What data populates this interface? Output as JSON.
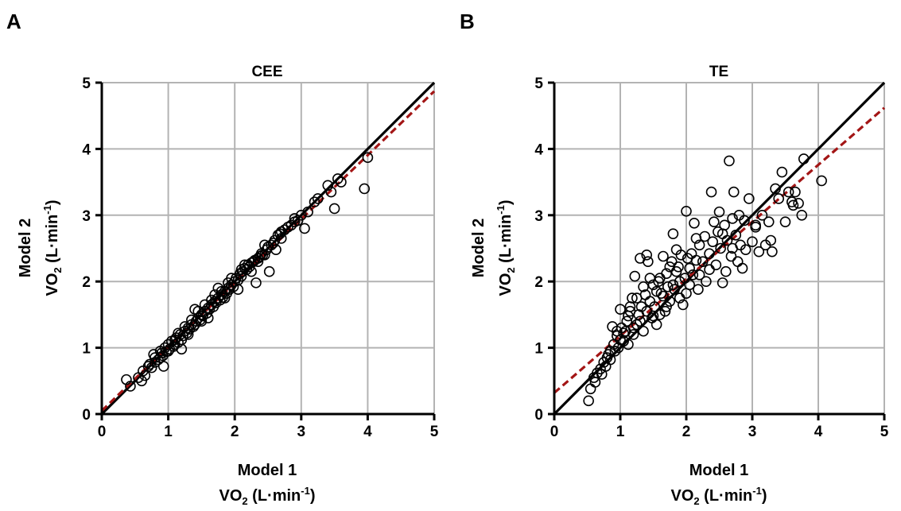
{
  "colors": {
    "grid": "#b3b3b3",
    "axis": "#000000",
    "identity": "#000000",
    "regression": "#a31515",
    "points": "#000000"
  },
  "chart_data": [
    {
      "panel": "A",
      "type": "scatter",
      "title": "CEE",
      "xlabel": {
        "line1": "Model 1",
        "dot": "V",
        "base": "O",
        "sub": "2",
        "unit_open": " (L·min",
        "sup": "-1",
        "unit_close": ")"
      },
      "ylabel": {
        "line1": "Model 2",
        "dot": "V",
        "base": "O",
        "sub": "2",
        "unit_open": " (L·min",
        "sup": "-1",
        "unit_close": ")"
      },
      "xlim": [
        0,
        5
      ],
      "ylim": [
        0,
        5
      ],
      "xticks": [
        "0",
        "1",
        "2",
        "3",
        "4",
        "5"
      ],
      "yticks": [
        "0",
        "1",
        "2",
        "3",
        "4",
        "5"
      ],
      "grid": true,
      "lines": [
        {
          "role": "identity",
          "style": "solid",
          "x": [
            0,
            5
          ],
          "y": [
            0,
            5
          ]
        },
        {
          "role": "regression",
          "style": "dashed",
          "x": [
            0,
            5
          ],
          "y": [
            0.05,
            4.87
          ]
        }
      ],
      "points": [
        [
          0.37,
          0.52
        ],
        [
          0.43,
          0.42
        ],
        [
          0.55,
          0.55
        ],
        [
          0.6,
          0.5
        ],
        [
          0.62,
          0.65
        ],
        [
          0.65,
          0.58
        ],
        [
          0.7,
          0.72
        ],
        [
          0.75,
          0.7
        ],
        [
          0.78,
          0.9
        ],
        [
          0.8,
          0.78
        ],
        [
          0.85,
          0.82
        ],
        [
          0.88,
          0.85
        ],
        [
          0.9,
          0.92
        ],
        [
          0.92,
          0.88
        ],
        [
          0.93,
          0.72
        ],
        [
          0.95,
          1.0
        ],
        [
          0.97,
          0.94
        ],
        [
          1.0,
          1.05
        ],
        [
          1.02,
          0.98
        ],
        [
          1.05,
          1.1
        ],
        [
          1.08,
          1.02
        ],
        [
          1.1,
          1.05
        ],
        [
          1.12,
          1.15
        ],
        [
          1.15,
          1.08
        ],
        [
          1.18,
          1.2
        ],
        [
          1.2,
          0.98
        ],
        [
          1.22,
          1.18
        ],
        [
          1.25,
          1.25
        ],
        [
          1.28,
          1.22
        ],
        [
          1.3,
          1.3
        ],
        [
          1.32,
          1.28
        ],
        [
          1.35,
          1.35
        ],
        [
          1.38,
          1.32
        ],
        [
          1.4,
          1.58
        ],
        [
          1.42,
          1.4
        ],
        [
          1.45,
          1.45
        ],
        [
          1.48,
          1.42
        ],
        [
          1.5,
          1.5
        ],
        [
          1.52,
          1.48
        ],
        [
          1.55,
          1.55
        ],
        [
          1.58,
          1.52
        ],
        [
          1.6,
          1.6
        ],
        [
          1.62,
          1.58
        ],
        [
          1.65,
          1.65
        ],
        [
          1.68,
          1.62
        ],
        [
          1.7,
          1.7
        ],
        [
          1.72,
          1.68
        ],
        [
          1.75,
          1.75
        ],
        [
          1.78,
          1.72
        ],
        [
          1.8,
          1.8
        ],
        [
          1.82,
          1.76
        ],
        [
          1.85,
          1.85
        ],
        [
          1.88,
          1.82
        ],
        [
          1.9,
          1.9
        ],
        [
          1.92,
          1.88
        ],
        [
          1.95,
          1.95
        ],
        [
          1.98,
          1.92
        ],
        [
          2.0,
          2.0
        ],
        [
          2.02,
          2.05
        ],
        [
          2.05,
          2.02
        ],
        [
          2.08,
          2.12
        ],
        [
          2.1,
          2.08
        ],
        [
          2.12,
          2.15
        ],
        [
          2.15,
          2.2
        ],
        [
          2.18,
          2.18
        ],
        [
          2.2,
          2.25
        ],
        [
          2.22,
          2.22
        ],
        [
          2.25,
          2.28
        ],
        [
          2.28,
          2.3
        ],
        [
          2.3,
          2.32
        ],
        [
          2.32,
          1.98
        ],
        [
          2.35,
          2.35
        ],
        [
          2.38,
          2.38
        ],
        [
          2.4,
          2.42
        ],
        [
          2.42,
          2.4
        ],
        [
          2.45,
          2.55
        ],
        [
          2.48,
          2.48
        ],
        [
          2.5,
          2.52
        ],
        [
          2.52,
          2.15
        ],
        [
          2.55,
          2.55
        ],
        [
          2.58,
          2.58
        ],
        [
          2.6,
          2.62
        ],
        [
          2.62,
          2.48
        ],
        [
          2.65,
          2.7
        ],
        [
          2.68,
          2.72
        ],
        [
          2.7,
          2.75
        ],
        [
          2.75,
          2.78
        ],
        [
          2.8,
          2.82
        ],
        [
          2.85,
          2.85
        ],
        [
          2.9,
          2.9
        ],
        [
          2.95,
          2.92
        ],
        [
          3.0,
          3.0
        ],
        [
          3.05,
          2.8
        ],
        [
          3.1,
          3.05
        ],
        [
          3.2,
          3.2
        ],
        [
          3.25,
          3.25
        ],
        [
          3.4,
          3.45
        ],
        [
          3.45,
          3.35
        ],
        [
          3.5,
          3.1
        ],
        [
          3.55,
          3.55
        ],
        [
          3.6,
          3.5
        ],
        [
          3.95,
          3.4
        ],
        [
          4.0,
          3.87
        ],
        [
          1.6,
          1.45
        ],
        [
          1.75,
          1.9
        ],
        [
          1.45,
          1.55
        ],
        [
          1.95,
          2.05
        ],
        [
          2.05,
          1.88
        ],
        [
          1.3,
          1.2
        ],
        [
          1.15,
          1.22
        ],
        [
          1.35,
          1.42
        ],
        [
          1.85,
          1.75
        ],
        [
          2.25,
          2.15
        ],
        [
          1.7,
          1.8
        ],
        [
          1.55,
          1.65
        ],
        [
          2.15,
          2.25
        ],
        [
          1.25,
          1.32
        ],
        [
          1.5,
          1.4
        ],
        [
          1.65,
          1.72
        ],
        [
          1.0,
          0.95
        ],
        [
          0.8,
          0.85
        ],
        [
          2.35,
          2.3
        ],
        [
          2.45,
          2.4
        ],
        [
          2.7,
          2.65
        ],
        [
          2.9,
          2.95
        ],
        [
          2.1,
          2.18
        ],
        [
          1.4,
          1.35
        ],
        [
          1.2,
          1.12
        ],
        [
          1.9,
          1.98
        ],
        [
          1.8,
          1.85
        ],
        [
          1.1,
          1.12
        ],
        [
          0.88,
          0.95
        ],
        [
          0.72,
          0.75
        ]
      ]
    },
    {
      "panel": "B",
      "type": "scatter",
      "title": "TE",
      "xlabel": {
        "line1": "Model 1",
        "dot": "V",
        "base": "O",
        "sub": "2",
        "unit_open": " (L·min",
        "sup": "-1",
        "unit_close": ")"
      },
      "ylabel": {
        "line1": "Model 2",
        "dot": "V",
        "base": "O",
        "sub": "2",
        "unit_open": " (L·min",
        "sup": "-1",
        "unit_close": ")"
      },
      "xlim": [
        0,
        5
      ],
      "ylim": [
        0,
        5
      ],
      "xticks": [
        "0",
        "1",
        "2",
        "3",
        "4",
        "5"
      ],
      "yticks": [
        "0",
        "1",
        "2",
        "3",
        "4",
        "5"
      ],
      "grid": true,
      "lines": [
        {
          "role": "identity",
          "style": "solid",
          "x": [
            0,
            5
          ],
          "y": [
            0,
            5
          ]
        },
        {
          "role": "regression",
          "style": "dashed",
          "x": [
            0,
            5
          ],
          "y": [
            0.32,
            4.62
          ]
        }
      ],
      "points": [
        [
          0.52,
          0.2
        ],
        [
          0.55,
          0.38
        ],
        [
          0.6,
          0.55
        ],
        [
          0.62,
          0.48
        ],
        [
          0.65,
          0.62
        ],
        [
          0.7,
          0.68
        ],
        [
          0.72,
          0.6
        ],
        [
          0.75,
          0.78
        ],
        [
          0.78,
          0.72
        ],
        [
          0.8,
          0.85
        ],
        [
          0.82,
          0.9
        ],
        [
          0.85,
          0.82
        ],
        [
          0.88,
          1.32
        ],
        [
          0.9,
          1.05
        ],
        [
          0.92,
          0.95
        ],
        [
          0.95,
          1.18
        ],
        [
          0.97,
          1.0
        ],
        [
          1.0,
          1.58
        ],
        [
          1.02,
          1.3
        ],
        [
          1.05,
          1.1
        ],
        [
          1.08,
          1.25
        ],
        [
          1.1,
          1.4
        ],
        [
          1.12,
          1.05
        ],
        [
          1.15,
          1.55
        ],
        [
          1.18,
          1.75
        ],
        [
          1.2,
          1.2
        ],
        [
          1.22,
          2.08
        ],
        [
          1.25,
          1.35
        ],
        [
          1.28,
          1.5
        ],
        [
          1.3,
          2.35
        ],
        [
          1.32,
          1.62
        ],
        [
          1.35,
          1.25
        ],
        [
          1.38,
          1.8
        ],
        [
          1.4,
          2.4
        ],
        [
          1.42,
          2.3
        ],
        [
          1.45,
          1.7
        ],
        [
          1.48,
          1.45
        ],
        [
          1.5,
          1.95
        ],
        [
          1.52,
          1.62
        ],
        [
          1.55,
          1.35
        ],
        [
          1.58,
          2.0
        ],
        [
          1.6,
          2.05
        ],
        [
          1.62,
          1.82
        ],
        [
          1.65,
          2.38
        ],
        [
          1.68,
          1.55
        ],
        [
          1.7,
          2.12
        ],
        [
          1.72,
          1.92
        ],
        [
          1.75,
          1.7
        ],
        [
          1.78,
          2.3
        ],
        [
          1.8,
          2.72
        ],
        [
          1.82,
          1.88
        ],
        [
          1.85,
          2.15
        ],
        [
          1.88,
          2.22
        ],
        [
          1.9,
          2.0
        ],
        [
          1.92,
          2.4
        ],
        [
          1.95,
          1.65
        ],
        [
          1.98,
          2.05
        ],
        [
          2.0,
          3.06
        ],
        [
          2.02,
          2.35
        ],
        [
          2.05,
          1.95
        ],
        [
          2.08,
          2.42
        ],
        [
          2.1,
          2.1
        ],
        [
          2.12,
          2.88
        ],
        [
          2.15,
          2.32
        ],
        [
          2.18,
          1.88
        ],
        [
          2.2,
          2.55
        ],
        [
          2.25,
          2.3
        ],
        [
          2.28,
          2.68
        ],
        [
          2.3,
          2.0
        ],
        [
          2.35,
          2.42
        ],
        [
          2.38,
          3.35
        ],
        [
          2.4,
          2.6
        ],
        [
          2.45,
          2.25
        ],
        [
          2.48,
          2.75
        ],
        [
          2.5,
          3.05
        ],
        [
          2.52,
          2.5
        ],
        [
          2.55,
          1.98
        ],
        [
          2.58,
          2.85
        ],
        [
          2.6,
          2.15
        ],
        [
          2.62,
          2.62
        ],
        [
          2.65,
          3.82
        ],
        [
          2.68,
          2.38
        ],
        [
          2.7,
          2.95
        ],
        [
          2.72,
          3.35
        ],
        [
          2.75,
          2.7
        ],
        [
          2.78,
          2.3
        ],
        [
          2.8,
          3.0
        ],
        [
          2.82,
          2.55
        ],
        [
          2.85,
          2.2
        ],
        [
          2.88,
          2.92
        ],
        [
          2.9,
          2.48
        ],
        [
          2.95,
          3.25
        ],
        [
          3.0,
          2.6
        ],
        [
          3.05,
          2.85
        ],
        [
          3.1,
          2.45
        ],
        [
          3.15,
          3.0
        ],
        [
          3.2,
          2.55
        ],
        [
          3.25,
          2.9
        ],
        [
          3.28,
          2.62
        ],
        [
          3.3,
          2.45
        ],
        [
          3.35,
          3.4
        ],
        [
          3.4,
          3.25
        ],
        [
          3.45,
          3.65
        ],
        [
          3.5,
          2.9
        ],
        [
          3.55,
          3.35
        ],
        [
          3.6,
          3.2
        ],
        [
          3.62,
          3.15
        ],
        [
          3.65,
          3.35
        ],
        [
          3.7,
          3.18
        ],
        [
          3.75,
          3.0
        ],
        [
          3.78,
          3.85
        ],
        [
          4.05,
          3.52
        ],
        [
          1.15,
          1.62
        ],
        [
          1.3,
          1.4
        ],
        [
          1.45,
          2.05
        ],
        [
          1.6,
          1.5
        ],
        [
          1.75,
          2.22
        ],
        [
          1.9,
          1.75
        ],
        [
          2.05,
          2.2
        ],
        [
          2.2,
          2.1
        ],
        [
          1.05,
          1.22
        ],
        [
          1.25,
          1.75
        ],
        [
          1.55,
          1.85
        ],
        [
          1.85,
          2.48
        ],
        [
          2.35,
          2.18
        ],
        [
          2.55,
          2.72
        ],
        [
          1.65,
          1.78
        ],
        [
          1.4,
          1.55
        ],
        [
          0.95,
          1.25
        ],
        [
          1.12,
          1.48
        ],
        [
          1.35,
          1.92
        ],
        [
          1.7,
          1.62
        ],
        [
          2.0,
          1.82
        ],
        [
          2.15,
          2.65
        ],
        [
          2.42,
          2.9
        ],
        [
          2.7,
          2.5
        ],
        [
          3.05,
          2.82
        ],
        [
          1.2,
          1.3
        ],
        [
          1.5,
          1.48
        ],
        [
          1.8,
          1.95
        ],
        [
          1.0,
          1.12
        ],
        [
          0.85,
          0.95
        ]
      ]
    }
  ]
}
